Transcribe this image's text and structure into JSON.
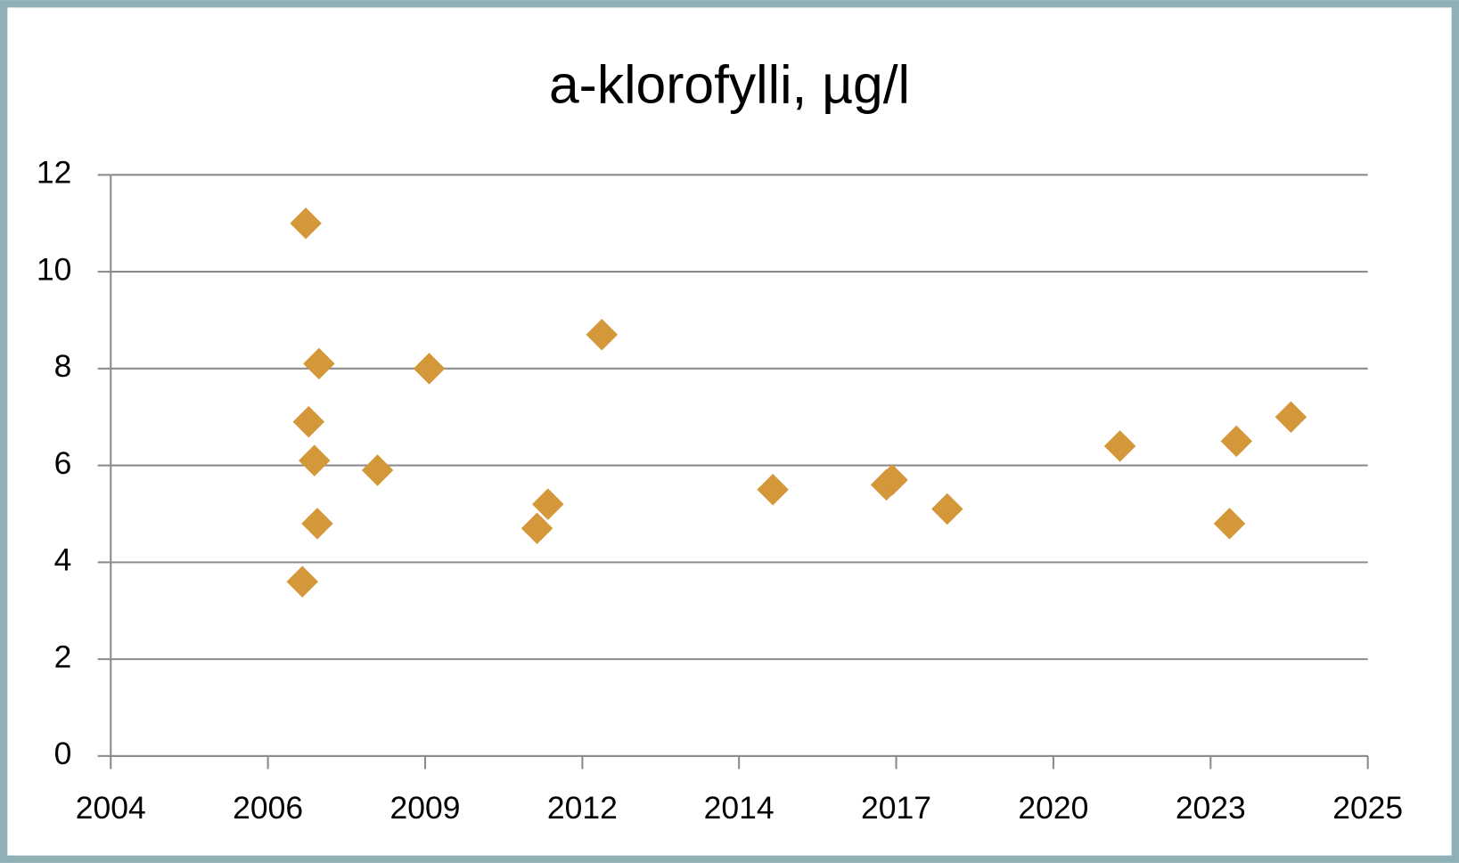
{
  "chart_data": {
    "type": "scatter",
    "title": "a-klorofylli, µg/l",
    "series": [
      {
        "color": "#d4973a",
        "x": [
          2007.44,
          2007.38,
          2007.49,
          2007.67,
          2007.59,
          2007.64,
          2008.69,
          2009.59,
          2011.47,
          2011.66,
          2012.6,
          2015.58,
          2017.56,
          2017.66,
          2018.62,
          2021.63,
          2023.54,
          2023.66,
          2024.61
        ],
        "values": [
          11.0,
          3.6,
          6.9,
          8.1,
          6.1,
          4.8,
          5.9,
          8.0,
          4.7,
          5.2,
          8.7,
          5.5,
          5.6,
          5.7,
          5.1,
          6.4,
          4.8,
          6.5,
          7.0
        ]
      }
    ],
    "xlim": [
      2004.04,
      2025.95
    ],
    "xticks": [
      {
        "value": 2004.04,
        "label": "2004"
      },
      {
        "value": 2006.78,
        "label": "2006"
      },
      {
        "value": 2009.52,
        "label": "2009"
      },
      {
        "value": 2012.26,
        "label": "2012"
      },
      {
        "value": 2014.99,
        "label": "2014"
      },
      {
        "value": 2017.73,
        "label": "2017"
      },
      {
        "value": 2020.47,
        "label": "2020"
      },
      {
        "value": 2023.21,
        "label": "2023"
      },
      {
        "value": 2025.95,
        "label": "2025"
      }
    ],
    "ylim": [
      0,
      12
    ],
    "yticks": [
      0,
      2,
      4,
      6,
      8,
      10,
      12
    ],
    "grid": true
  }
}
